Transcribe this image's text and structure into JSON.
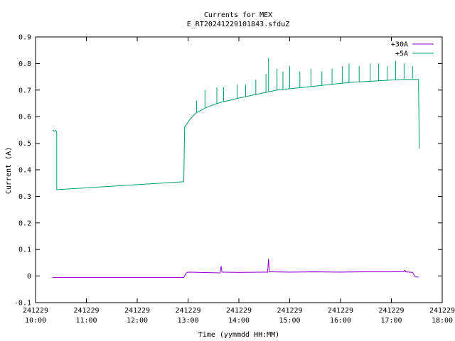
{
  "chart_data": {
    "type": "line",
    "title": "Currents for MEX",
    "subtitle": "E_RT20241229101843.sfduZ",
    "xlabel": "Time (yymmdd HH:MM)",
    "ylabel": "Current (A)",
    "xlim": [
      "241229 10:00",
      "241229 18:00"
    ],
    "ylim": [
      -0.1,
      0.9
    ],
    "legend_position": "top-right",
    "grid": false,
    "x_ticks": [
      {
        "date": "241229",
        "time": "10:00"
      },
      {
        "date": "241229",
        "time": "11:00"
      },
      {
        "date": "241229",
        "time": "12:00"
      },
      {
        "date": "241229",
        "time": "13:00"
      },
      {
        "date": "241229",
        "time": "14:00"
      },
      {
        "date": "241229",
        "time": "15:00"
      },
      {
        "date": "241229",
        "time": "16:00"
      },
      {
        "date": "241229",
        "time": "17:00"
      },
      {
        "date": "241229",
        "time": "18:00"
      }
    ],
    "y_ticks": [
      "-0.1",
      "0",
      "0.1",
      "0.2",
      "0.3",
      "0.4",
      "0.5",
      "0.6",
      "0.7",
      "0.8",
      "0.9"
    ],
    "series": [
      {
        "name": "+30A",
        "color": "#9400d3",
        "points": [
          [
            "241229 10:20",
            -0.005
          ],
          [
            "241229 12:55",
            -0.005
          ],
          [
            "241229 12:58",
            0.012
          ],
          [
            "241229 13:00",
            0.015
          ],
          [
            "241229 13:30",
            0.013
          ],
          [
            "241229 13:38",
            0.012
          ],
          [
            "241229 13:39",
            0.038
          ],
          [
            "241229 13:40",
            0.015
          ],
          [
            "241229 14:00",
            0.014
          ],
          [
            "241229 14:30",
            0.015
          ],
          [
            "241229 14:34",
            0.015
          ],
          [
            "241229 14:35",
            0.065
          ],
          [
            "241229 14:36",
            0.016
          ],
          [
            "241229 15:00",
            0.015
          ],
          [
            "241229 15:30",
            0.016
          ],
          [
            "241229 16:00",
            0.015
          ],
          [
            "241229 16:30",
            0.016
          ],
          [
            "241229 17:00",
            0.016
          ],
          [
            "241229 17:15",
            0.017
          ],
          [
            "241229 17:16",
            0.022
          ],
          [
            "241229 17:17",
            0.016
          ],
          [
            "241229 17:25",
            0.014
          ],
          [
            "241229 17:28",
            -0.003
          ],
          [
            "241229 17:32",
            -0.004
          ]
        ]
      },
      {
        "name": "+5A",
        "color": "#009e73",
        "points": [
          [
            "241229 10:20",
            0.55
          ],
          [
            "241229 10:22",
            0.545
          ],
          [
            "241229 10:24",
            0.548
          ],
          [
            "241229 10:25",
            0.54
          ],
          [
            "241229 10:25",
            0.325
          ],
          [
            "241229 12:55",
            0.355
          ],
          [
            "241229 12:56",
            0.56
          ],
          [
            "241229 13:00",
            0.58
          ],
          [
            "241229 13:05",
            0.6
          ],
          [
            "241229 13:10",
            0.615
          ],
          [
            "241229 13:20",
            0.632
          ],
          [
            "241229 13:30",
            0.645
          ],
          [
            "241229 13:40",
            0.655
          ],
          [
            "241229 13:50",
            0.662
          ],
          [
            "241229 14:00",
            0.67
          ],
          [
            "241229 14:15",
            0.68
          ],
          [
            "241229 14:30",
            0.69
          ],
          [
            "241229 14:45",
            0.7
          ],
          [
            "241229 15:00",
            0.705
          ],
          [
            "241229 15:15",
            0.71
          ],
          [
            "241229 15:30",
            0.715
          ],
          [
            "241229 15:45",
            0.72
          ],
          [
            "241229 16:00",
            0.725
          ],
          [
            "241229 16:15",
            0.73
          ],
          [
            "241229 16:30",
            0.732
          ],
          [
            "241229 16:45",
            0.735
          ],
          [
            "241229 17:00",
            0.738
          ],
          [
            "241229 17:15",
            0.74
          ],
          [
            "241229 17:30",
            0.74
          ],
          [
            "241229 17:32",
            0.74
          ],
          [
            "241229 17:33",
            0.48
          ]
        ],
        "spikes": [
          [
            "241229 13:10",
            0.66
          ],
          [
            "241229 13:20",
            0.7
          ],
          [
            "241229 13:34",
            0.71
          ],
          [
            "241229 13:42",
            0.71
          ],
          [
            "241229 13:58",
            0.72
          ],
          [
            "241229 14:08",
            0.72
          ],
          [
            "241229 14:20",
            0.74
          ],
          [
            "241229 14:32",
            0.76
          ],
          [
            "241229 14:35",
            0.82
          ],
          [
            "241229 14:45",
            0.78
          ],
          [
            "241229 14:52",
            0.77
          ],
          [
            "241229 15:00",
            0.79
          ],
          [
            "241229 15:12",
            0.77
          ],
          [
            "241229 15:25",
            0.78
          ],
          [
            "241229 15:38",
            0.77
          ],
          [
            "241229 15:50",
            0.78
          ],
          [
            "241229 16:02",
            0.79
          ],
          [
            "241229 16:10",
            0.8
          ],
          [
            "241229 16:22",
            0.79
          ],
          [
            "241229 16:35",
            0.8
          ],
          [
            "241229 16:45",
            0.8
          ],
          [
            "241229 16:55",
            0.79
          ],
          [
            "241229 17:05",
            0.81
          ],
          [
            "241229 17:15",
            0.8
          ],
          [
            "241229 17:25",
            0.79
          ]
        ]
      }
    ]
  }
}
